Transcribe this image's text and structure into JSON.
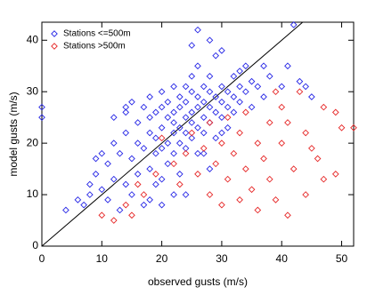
{
  "chart_data": {
    "type": "scatter",
    "x_label": "observed gusts (m/s)",
    "y_label": "model gusts (m/s)",
    "xlim": [
      0,
      52
    ],
    "ylim": [
      0,
      43.5
    ],
    "xticks": [
      0,
      10,
      20,
      30,
      40,
      50
    ],
    "yticks": [
      0,
      10,
      20,
      30,
      40
    ],
    "identity_line": true,
    "legend": "top-left",
    "series": [
      {
        "name": "Stations <=500m",
        "color": "#2626e6",
        "x": [
          0,
          0,
          4,
          6,
          7,
          8,
          9,
          10,
          11,
          11,
          12,
          12,
          13,
          13,
          14,
          14,
          14,
          15,
          15,
          15,
          16,
          16,
          16,
          17,
          17,
          17,
          18,
          18,
          18,
          18,
          19,
          19,
          19,
          19,
          20,
          20,
          20,
          20,
          20,
          21,
          21,
          21,
          21,
          22,
          22,
          22,
          22,
          22,
          23,
          23,
          23,
          23,
          23,
          24,
          24,
          24,
          24,
          24,
          25,
          25,
          25,
          25,
          25,
          26,
          26,
          26,
          26,
          26,
          27,
          27,
          27,
          27,
          28,
          28,
          28,
          28,
          28,
          29,
          29,
          29,
          29,
          30,
          30,
          30,
          30,
          31,
          31,
          31,
          32,
          32,
          32,
          33,
          33,
          34,
          34,
          35,
          35,
          36,
          37,
          38,
          40,
          41,
          42,
          43,
          44,
          45,
          28,
          25,
          26,
          14,
          12,
          10,
          9,
          8,
          22,
          24,
          18,
          20,
          30,
          33,
          37,
          27
        ],
        "y": [
          27,
          25,
          7,
          9,
          8,
          10,
          14,
          11,
          9,
          16,
          13,
          20,
          7,
          18,
          12,
          22,
          26,
          17,
          10,
          28,
          20,
          14,
          24,
          19,
          8,
          27,
          22,
          15,
          25,
          29,
          18,
          21,
          12,
          26,
          23,
          19,
          27,
          30,
          8,
          25,
          20,
          16,
          28,
          22,
          24,
          26,
          31,
          18,
          23,
          27,
          20,
          29,
          14,
          25,
          22,
          28,
          31,
          19,
          26,
          24,
          30,
          21,
          33,
          27,
          23,
          29,
          18,
          35,
          28,
          25,
          31,
          22,
          27,
          30,
          24,
          33,
          15,
          29,
          26,
          37,
          21,
          28,
          31,
          25,
          38,
          30,
          27,
          23,
          29,
          33,
          26,
          31,
          28,
          30,
          35,
          32,
          27,
          31,
          29,
          33,
          31,
          35,
          43,
          32,
          31,
          29,
          40,
          39,
          42,
          27,
          25,
          18,
          17,
          12,
          10,
          10,
          9,
          13,
          22,
          34,
          35,
          18
        ]
      },
      {
        "name": "Stations >500m",
        "color": "#e62626",
        "x": [
          10,
          12,
          14,
          15,
          16,
          17,
          19,
          20,
          22,
          23,
          24,
          25,
          26,
          27,
          28,
          28,
          29,
          30,
          30,
          31,
          31,
          32,
          33,
          33,
          34,
          34,
          35,
          36,
          36,
          37,
          38,
          38,
          39,
          40,
          40,
          41,
          41,
          42,
          43,
          44,
          44,
          46,
          47,
          47,
          49,
          49,
          50,
          52,
          45,
          39
        ],
        "y": [
          6,
          5,
          8,
          6,
          12,
          10,
          14,
          21,
          16,
          12,
          18,
          22,
          14,
          19,
          24,
          10,
          16,
          20,
          8,
          25,
          13,
          18,
          22,
          9,
          15,
          26,
          11,
          20,
          7,
          17,
          24,
          13,
          9,
          20,
          27,
          6,
          24,
          15,
          30,
          22,
          10,
          17,
          13,
          27,
          26,
          14,
          23,
          23,
          19,
          30
        ]
      }
    ]
  }
}
